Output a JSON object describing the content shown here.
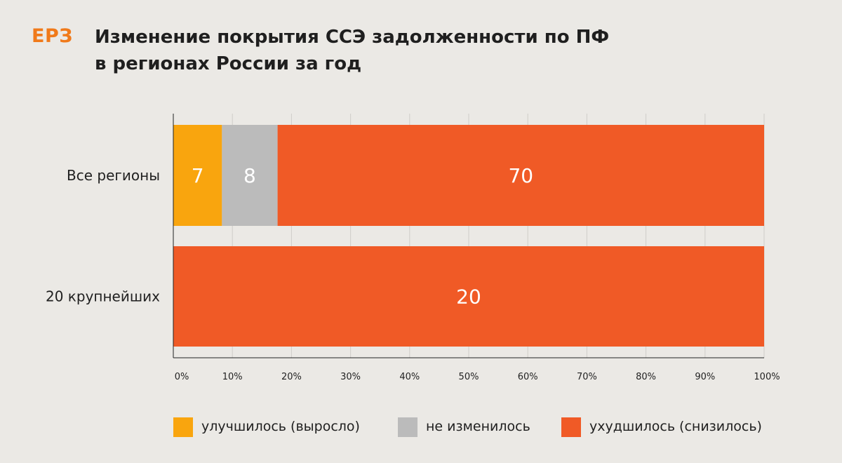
{
  "brand": {
    "logo_text": "ЕРЗ"
  },
  "chart_data": {
    "type": "bar",
    "orientation": "horizontal",
    "stacked": true,
    "title_lines": [
      "Изменение покрытия ССЭ задолженности по ПФ",
      "в регионах России за год"
    ],
    "categories": [
      "Все регионы",
      "20 крупнейших"
    ],
    "series": [
      {
        "name": "улучшилось (выросло)",
        "color": "#f9a50e",
        "values": [
          7,
          0
        ]
      },
      {
        "name": "не изменилось",
        "color": "#bbbbbb",
        "values": [
          8,
          0
        ]
      },
      {
        "name": "ухудшилось (снизилось)",
        "color": "#f05a26",
        "values": [
          70,
          20
        ]
      }
    ],
    "data_labels": [
      [
        "7",
        "8",
        "70"
      ],
      [
        "",
        "",
        "20"
      ]
    ],
    "xlabel": "",
    "ylabel": "",
    "xlim": [
      0,
      100
    ],
    "x_unit": "percent",
    "x_ticks": [
      0,
      10,
      20,
      30,
      40,
      50,
      60,
      70,
      80,
      90,
      100
    ],
    "x_tick_labels": [
      "0%",
      "10%",
      "20%",
      "30%",
      "40%",
      "50%",
      "60%",
      "70%",
      "80%",
      "90%",
      "100%"
    ],
    "grid": "vertical",
    "legend": "bottom"
  }
}
